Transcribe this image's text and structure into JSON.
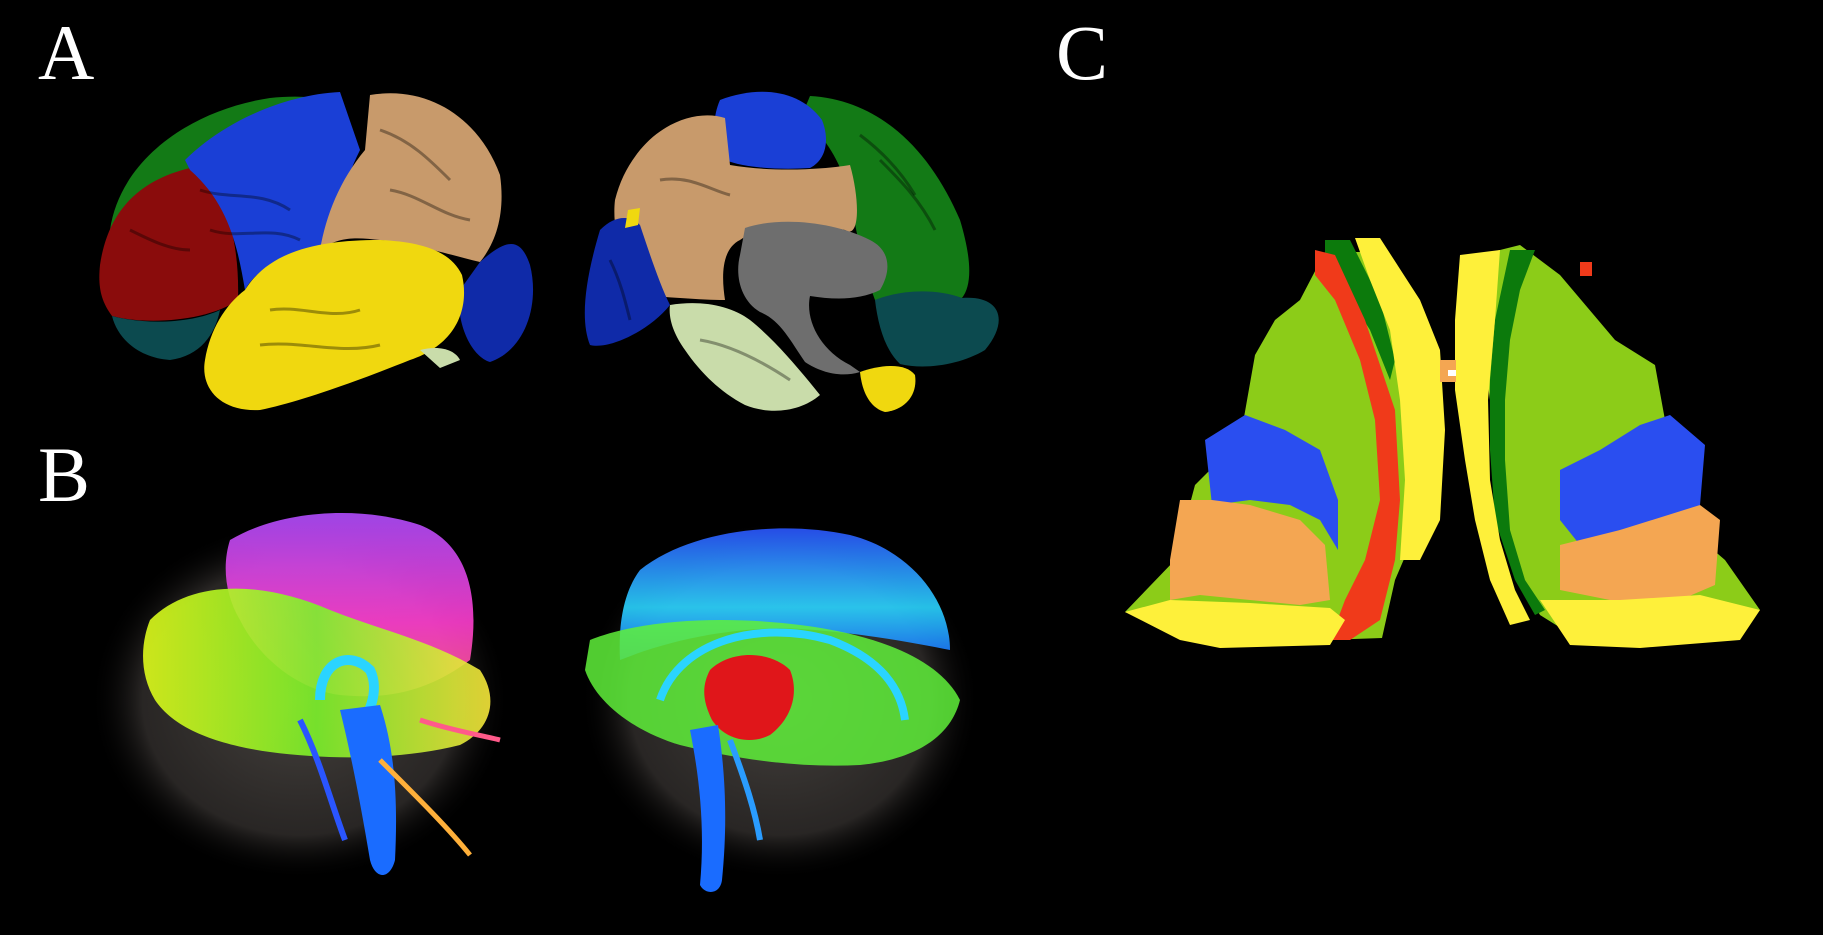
{
  "panels": {
    "a": {
      "label": "A"
    },
    "b": {
      "label": "B"
    },
    "c": {
      "label": "C"
    }
  },
  "colors": {
    "background": "#000000",
    "frontal": "#1a3fd6",
    "parietal": "#c89a6b",
    "temporal": "#f0d80f",
    "occipital": "#0f2aa8",
    "medial_green": "#137a16",
    "dark_red": "#8a0c0c",
    "teal": "#0c4a4f",
    "pale_green": "#c9dcaa",
    "gray": "#6e6e6e",
    "atlas_lightgreen": "#8ccc18",
    "atlas_darkgreen": "#0c7a0c",
    "atlas_yellow": "#fef03a",
    "atlas_red": "#f03a1a",
    "atlas_blue": "#2a4ef0",
    "atlas_orange": "#f4a652"
  },
  "icons": {
    "panel_a": [
      "brain-lateral-surface-icon",
      "brain-medial-surface-icon"
    ],
    "panel_b": [
      "tractography-lateral-icon",
      "tractography-medial-icon"
    ],
    "panel_c": [
      "cerebellar-atlas-slice-icon"
    ]
  }
}
